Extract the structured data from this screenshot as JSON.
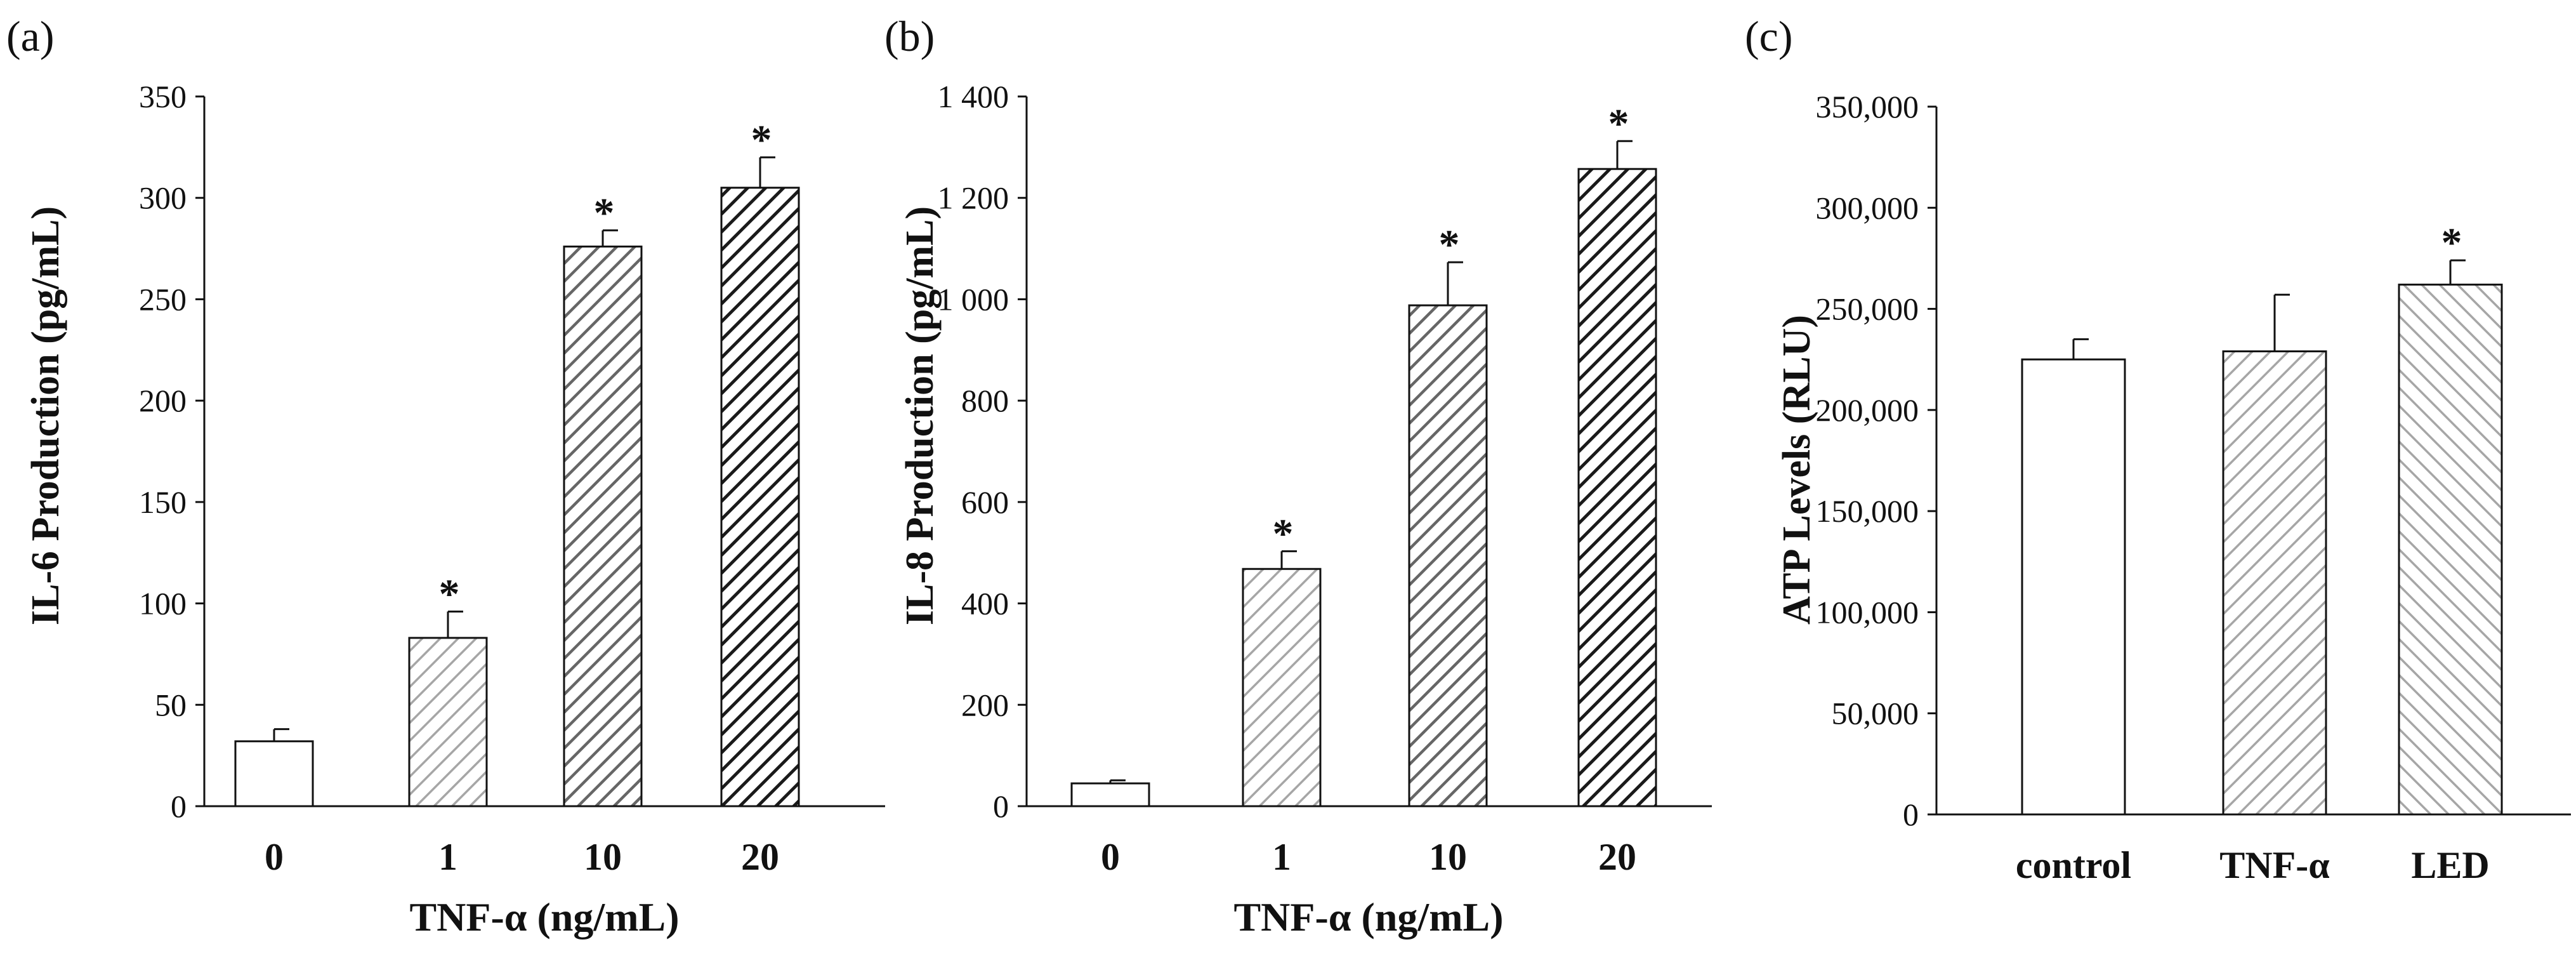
{
  "chart_data": [
    {
      "type": "bar",
      "panel": "(a)",
      "categories": [
        "0",
        "1",
        "10",
        "20"
      ],
      "values": [
        32,
        83,
        276,
        305
      ],
      "errors": [
        6,
        13,
        8,
        15
      ],
      "significant": [
        false,
        true,
        true,
        true
      ],
      "yticks": [
        "0",
        "50",
        "100",
        "150",
        "200",
        "250",
        "300",
        "350"
      ],
      "ylim": [
        0,
        350
      ],
      "ylabel": "IL-6 Production (pg/mL)",
      "xlabel": "TNF-α (ng/mL)",
      "fills": [
        "none",
        "light",
        "medium",
        "dark"
      ]
    },
    {
      "type": "bar",
      "panel": "(b)",
      "categories": [
        "0",
        "1",
        "10",
        "20"
      ],
      "values": [
        45,
        468,
        988,
        1257
      ],
      "errors": [
        6,
        35,
        85,
        55
      ],
      "significant": [
        false,
        true,
        true,
        true
      ],
      "yticks": [
        "0",
        "200",
        "400",
        "600",
        "800",
        "1 000",
        "1 200",
        "1 400"
      ],
      "ylim": [
        0,
        1400
      ],
      "ylabel": "IL-8 Production (pg/mL)",
      "xlabel": "TNF-α (ng/mL)",
      "fills": [
        "none",
        "light",
        "medium",
        "dark"
      ]
    },
    {
      "type": "bar",
      "panel": "(c)",
      "categories": [
        "control",
        "TNF-α",
        "LED"
      ],
      "values": [
        225000,
        229000,
        262000
      ],
      "errors": [
        10000,
        28000,
        12000
      ],
      "significant": [
        false,
        false,
        true
      ],
      "yticks": [
        "0",
        "50,000",
        "100,000",
        "150,000",
        "200,000",
        "250,000",
        "300,000",
        "350,000"
      ],
      "ylim": [
        0,
        350000
      ],
      "ylabel": "ATP Levels (RLU)",
      "xlabel": "",
      "fills": [
        "none",
        "light",
        "light-rev"
      ]
    }
  ],
  "annotation": {
    "significance_marker": "*"
  },
  "colors": {
    "axis": "#111111",
    "light_hatch": "#a6a6a6",
    "medium_hatch": "#666666",
    "dark_hatch": "#1a1a1a"
  }
}
